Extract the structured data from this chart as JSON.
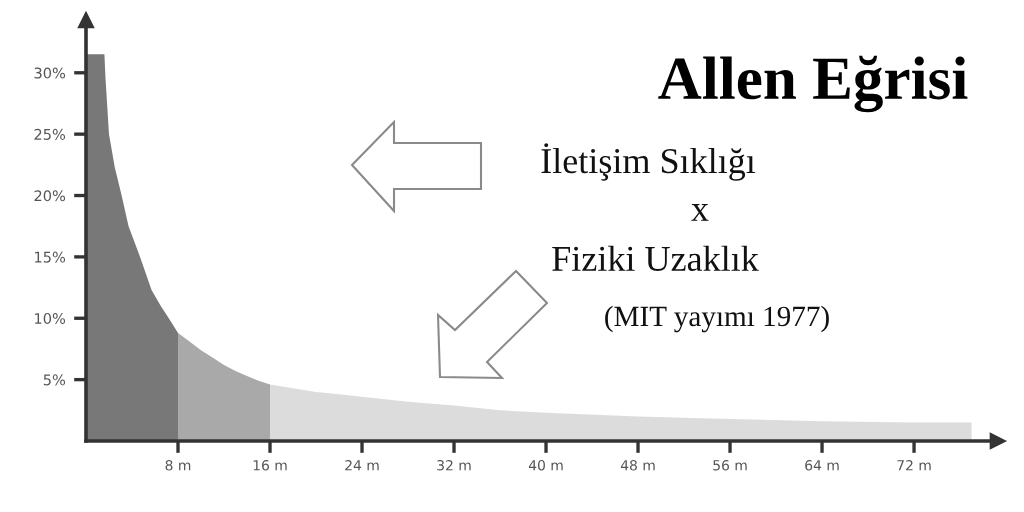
{
  "chart_data": {
    "type": "area",
    "title": "Allen Eğrisi",
    "annotations": [
      "İletişim Sıklığı",
      "x",
      "Fiziki Uzaklık",
      "(MIT yayımı 1977)"
    ],
    "series": [
      {
        "color": "#787878",
        "x": [
          0,
          1.6,
          1.7,
          2.0,
          2.5,
          3.1,
          3.7,
          4.7,
          5.7,
          6.5,
          7.2,
          8
        ],
        "values": [
          31.5,
          31.5,
          29.5,
          25,
          22.3,
          20,
          17.5,
          15,
          12.3,
          11.0,
          10,
          8.8
        ]
      },
      {
        "color": "#a9a9a9",
        "x": [
          8,
          9,
          10,
          11,
          12,
          13,
          14,
          15,
          16
        ],
        "values": [
          8.8,
          8.1,
          7.4,
          6.8,
          6.2,
          5.7,
          5.3,
          4.9,
          4.6
        ]
      },
      {
        "color": "#dcdcdc",
        "x": [
          16,
          18,
          20,
          22,
          24,
          28,
          32,
          36,
          40,
          48,
          56,
          64,
          72,
          77
        ],
        "values": [
          4.6,
          4.3,
          4.0,
          3.8,
          3.6,
          3.2,
          2.9,
          2.5,
          2.3,
          2.0,
          1.8,
          1.6,
          1.5,
          1.5
        ]
      }
    ],
    "xlim": [
      0,
      79.3
    ],
    "ylim": [
      0,
      34.3
    ],
    "xticks": [
      {
        "value": 8,
        "label": "8 m"
      },
      {
        "value": 16,
        "label": "16 m"
      },
      {
        "value": 24,
        "label": "24 m"
      },
      {
        "value": 32,
        "label": "32 m"
      },
      {
        "value": 40,
        "label": "40 m"
      },
      {
        "value": 48,
        "label": "48 m"
      },
      {
        "value": 56,
        "label": "56 m"
      },
      {
        "value": 64,
        "label": "64 m"
      },
      {
        "value": 72,
        "label": "72 m"
      }
    ],
    "yticks": [
      {
        "value": 5,
        "label": "5%"
      },
      {
        "value": 10,
        "label": "10%"
      },
      {
        "value": 15,
        "label": "15%"
      },
      {
        "value": 20,
        "label": "20%"
      },
      {
        "value": 25,
        "label": "25%"
      },
      {
        "value": 30,
        "label": "30%"
      }
    ]
  }
}
